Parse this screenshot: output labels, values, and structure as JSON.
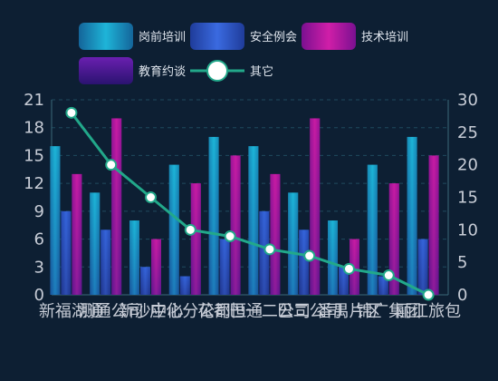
{
  "chart_data": {
    "type": "bar",
    "categories": [
      "新福湖通",
      "测通公司",
      "新沙中心",
      "应化分公司",
      "花都恒通",
      "巴一二公司",
      "巴二公司",
      "番禺片区",
      "锦广集团",
      "丽江旅包"
    ],
    "series": [
      {
        "name": "岗前培训",
        "type": "bar",
        "axis": "left",
        "values": [
          16,
          11,
          8,
          14,
          17,
          16,
          11,
          8,
          14,
          17
        ]
      },
      {
        "name": "安全例会",
        "type": "bar",
        "axis": "left",
        "values": [
          9,
          7,
          3,
          2,
          6,
          9,
          7,
          3,
          2,
          6
        ]
      },
      {
        "name": "技术培训",
        "type": "bar",
        "axis": "left",
        "values": [
          13,
          19,
          6,
          12,
          15,
          13,
          19,
          6,
          12,
          15
        ]
      },
      {
        "name": "教育约谈",
        "type": "bar",
        "axis": "left",
        "values": [
          0,
          0,
          0,
          0,
          0,
          0,
          0,
          0,
          0,
          0
        ]
      },
      {
        "name": "其它",
        "type": "line",
        "axis": "right",
        "values": [
          28,
          20,
          15,
          10,
          9,
          7,
          6,
          4,
          3,
          0
        ]
      }
    ],
    "y_left": {
      "min": 0,
      "max": 21,
      "ticks": [
        0,
        3,
        6,
        9,
        12,
        15,
        18,
        21
      ]
    },
    "y_right": {
      "min": 0,
      "max": 30,
      "ticks": [
        0,
        5,
        10,
        15,
        20,
        25,
        30
      ]
    },
    "grid": true,
    "legend_position": "top",
    "colors": {
      "岗前培训": "#1aa3c9",
      "安全例会": "#2e55c9",
      "技术培训": "#b0189e",
      "教育约谈": "#6a1fb0",
      "其它": "#22a88a",
      "background": "#0d1f33"
    }
  }
}
